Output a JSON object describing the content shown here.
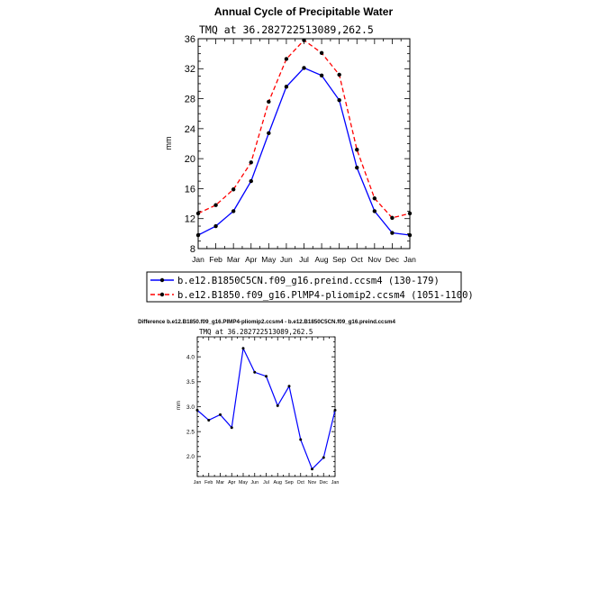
{
  "chart_data": [
    {
      "type": "line",
      "title": "Annual Cycle of Precipitable Water",
      "subtitle": "TMQ  at  36.282722513089,262.5",
      "ylabel": "mm",
      "xlabel": "",
      "categories": [
        "Jan",
        "Feb",
        "Mar",
        "Apr",
        "May",
        "Jun",
        "Jul",
        "Aug",
        "Sep",
        "Oct",
        "Nov",
        "Dec",
        "Jan"
      ],
      "ylim": [
        8,
        36
      ],
      "yticks": [
        8,
        12,
        16,
        20,
        24,
        28,
        32,
        36
      ],
      "ytick_labels": [
        "8",
        "12",
        "16",
        "20",
        "24",
        "28",
        "32",
        "36"
      ],
      "series": [
        {
          "name": "b.e12.B1850C5CN.f09_g16.preind.ccsm4 (130-179)",
          "color": "#0000ff",
          "dash": "solid",
          "values": [
            9.8,
            11.0,
            13.0,
            17.0,
            23.4,
            29.6,
            32.1,
            31.1,
            27.8,
            18.8,
            13.0,
            10.1,
            9.8
          ]
        },
        {
          "name": "b.e12.B1850.f09_g16.PlMP4-pliomip2.ccsm4 (1051-1100)",
          "color": "#ff0000",
          "dash": "dashed",
          "values": [
            12.7,
            13.8,
            15.9,
            19.5,
            27.6,
            33.3,
            35.8,
            34.1,
            31.2,
            21.2,
            14.7,
            12.1,
            12.7
          ]
        }
      ],
      "legend": "below"
    },
    {
      "type": "line",
      "title": "Difference b.e12.B1850.f09_g16.PlMP4-pliomip2.ccsm4 - b.e12.B1850C5CN.f09_g16.preind.ccsm4",
      "subtitle": "TMQ  at  36.282722513089,262.5",
      "ylabel": "mm",
      "xlabel": "",
      "categories": [
        "Jan",
        "Feb",
        "Mar",
        "Apr",
        "May",
        "Jun",
        "Jul",
        "Aug",
        "Sep",
        "Oct",
        "Nov",
        "Dec",
        "Jan"
      ],
      "ylim": [
        1.6,
        4.4
      ],
      "yticks": [
        2.0,
        2.5,
        3.0,
        3.5,
        4.0
      ],
      "ytick_labels": [
        "2.0",
        "2.5",
        "3.0",
        "3.5",
        "4.0"
      ],
      "series": [
        {
          "name": "difference",
          "color": "#0000ff",
          "dash": "solid",
          "values": [
            2.93,
            2.73,
            2.84,
            2.58,
            4.17,
            3.69,
            3.61,
            3.02,
            3.41,
            2.34,
            1.75,
            1.98,
            2.93
          ]
        }
      ]
    }
  ]
}
